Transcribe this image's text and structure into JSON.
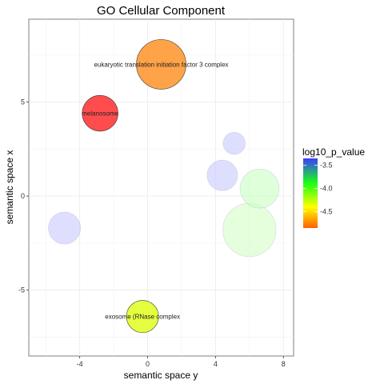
{
  "chart_data": {
    "type": "scatter",
    "title": "GO Cellular Component",
    "xlabel": "semantic space y",
    "ylabel": "semantic space x",
    "xlim": [
      -7,
      8.6
    ],
    "ylim": [
      -8.5,
      9.4
    ],
    "x_ticks": [
      -4,
      0,
      4,
      8
    ],
    "y_ticks": [
      -5,
      0,
      5
    ],
    "grid": true,
    "legend": {
      "title": "log10_p_value",
      "placement": "right",
      "ticks": [
        -3.5,
        -4.0,
        -4.5
      ],
      "tick_labels": [
        "-3.5",
        "-4.0",
        "-4.5"
      ],
      "range": [
        -3.35,
        -4.85
      ],
      "colors": [
        "#3c3cff",
        "#18ff18",
        "#ffff00",
        "#ff6000"
      ]
    },
    "points": [
      {
        "label": "eukaryotic translation initiation factor 3 complex",
        "x": 0.8,
        "y": 7.0,
        "size": 1.0,
        "log10_p_value": -4.7,
        "color": "#ff8c1a",
        "opacity": 0.8
      },
      {
        "label": "melanosome",
        "x": -2.8,
        "y": 4.4,
        "size": 0.52,
        "log10_p_value": -4.8,
        "color": "#ff2020",
        "opacity": 0.8
      },
      {
        "label": "exosome (RNase complex",
        "x": -0.3,
        "y": -6.4,
        "size": 0.42,
        "log10_p_value": -4.3,
        "color": "#dfff10",
        "opacity": 0.8
      },
      {
        "label": "",
        "x": 5.1,
        "y": 2.8,
        "size": 0.2,
        "log10_p_value": -3.4,
        "color": "#c8c8ff",
        "opacity": 0.6
      },
      {
        "label": "",
        "x": 4.4,
        "y": 1.1,
        "size": 0.38,
        "log10_p_value": -3.4,
        "color": "#c8c8ff",
        "opacity": 0.6
      },
      {
        "label": "",
        "x": 6.6,
        "y": 0.4,
        "size": 0.62,
        "log10_p_value": -3.9,
        "color": "#c8ffc0",
        "opacity": 0.6
      },
      {
        "label": "",
        "x": 6.0,
        "y": -1.8,
        "size": 1.15,
        "log10_p_value": -3.9,
        "color": "#d4ffc4",
        "opacity": 0.6
      },
      {
        "label": "",
        "x": -4.9,
        "y": -1.7,
        "size": 0.42,
        "log10_p_value": -3.4,
        "color": "#c8c8ff",
        "opacity": 0.6
      }
    ]
  }
}
